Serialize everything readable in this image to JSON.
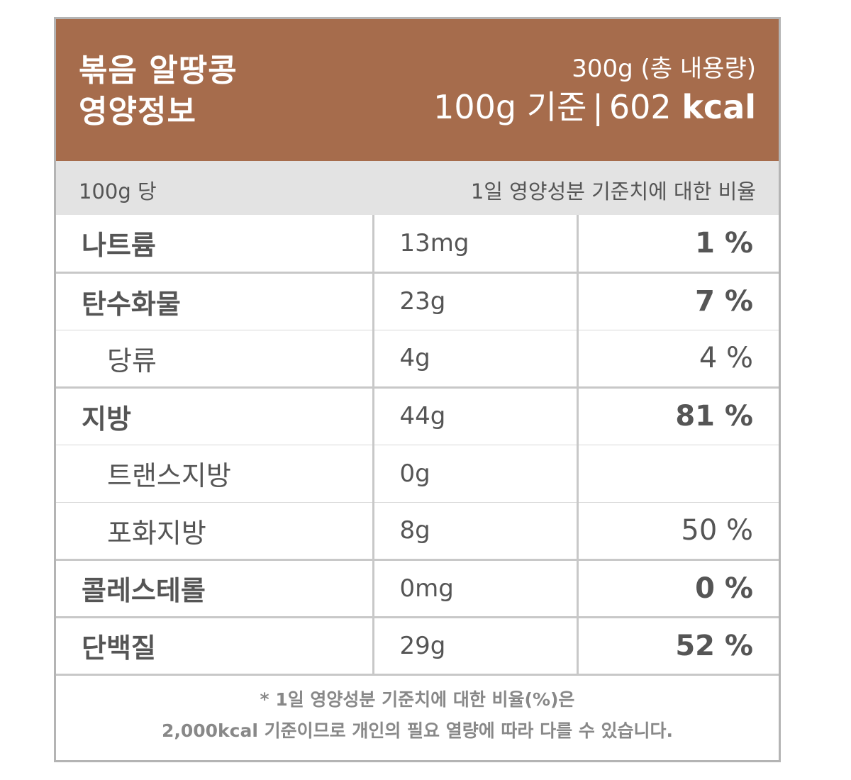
{
  "header": {
    "title_line1": "볶음 알땅콩",
    "title_line2": "영양정보",
    "total": "300g (총 내용량)",
    "basis": "100g 기준",
    "separator": "|",
    "calories": "602",
    "calories_unit": "kcal"
  },
  "subheader": {
    "left": "100g 당",
    "right": "1일 영양성분 기준치에 대한 비율"
  },
  "rows": [
    {
      "name": "나트륨",
      "amount": "13mg",
      "percent": "1 %"
    },
    {
      "name": "탄수화물",
      "amount": "23g",
      "percent": "7 %"
    },
    {
      "name": "당류",
      "amount": "4g",
      "percent": "4 %"
    },
    {
      "name": "지방",
      "amount": "44g",
      "percent": "81 %"
    },
    {
      "name": "트랜스지방",
      "amount": "0g",
      "percent": ""
    },
    {
      "name": "포화지방",
      "amount": "8g",
      "percent": "50 %"
    },
    {
      "name": "콜레스테롤",
      "amount": "0mg",
      "percent": "0 %"
    },
    {
      "name": "단백질",
      "amount": "29g",
      "percent": "52 %"
    }
  ],
  "footnote": {
    "line1": "* 1일 영양성분 기준치에 대한 비율(%)은",
    "line2": "2,000kcal 기준이므로 개인의 필요 열량에 따라 다를 수 있습니다."
  },
  "colors": {
    "header_bg": "#a66c4c",
    "subheader_bg": "#e3e3e3",
    "text": "#555555",
    "border": "#b4b4b4"
  }
}
